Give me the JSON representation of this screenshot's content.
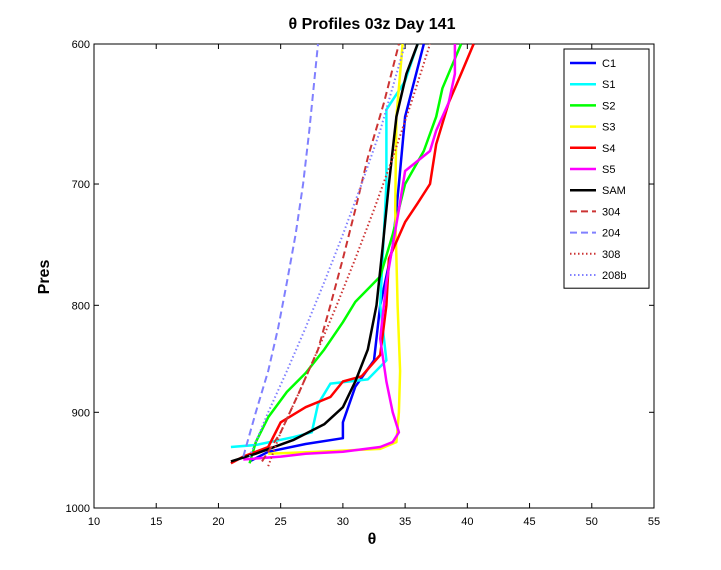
{
  "chart_data": {
    "type": "line",
    "title": "θ Profiles 03z Day 141",
    "xlabel": "θ",
    "ylabel": "Pres",
    "xlim": [
      10,
      55
    ],
    "ylim": [
      600,
      1000
    ],
    "y_reversed": true,
    "y_scale": "log",
    "xticks": [
      10,
      15,
      20,
      25,
      30,
      35,
      40,
      45,
      50,
      55
    ],
    "yticks": [
      600,
      700,
      800,
      900,
      1000
    ],
    "grid": false,
    "legend_position": "top-right",
    "series": [
      {
        "name": "C1",
        "color": "#0000ff",
        "style": "solid",
        "points": [
          [
            22.5,
            950
          ],
          [
            24,
            940
          ],
          [
            27,
            932
          ],
          [
            30,
            926
          ],
          [
            30,
            910
          ],
          [
            31,
            875
          ],
          [
            32.5,
            850
          ],
          [
            33,
            800
          ],
          [
            34,
            750
          ],
          [
            34.5,
            700
          ],
          [
            35,
            650
          ],
          [
            36.5,
            600
          ]
        ]
      },
      {
        "name": "S1",
        "color": "#00ffff",
        "style": "solid",
        "points": [
          [
            21,
            935
          ],
          [
            23,
            933
          ],
          [
            26,
            925
          ],
          [
            27.5,
            920
          ],
          [
            28,
            892
          ],
          [
            29,
            872
          ],
          [
            32,
            868
          ],
          [
            33.5,
            850
          ],
          [
            33,
            800
          ],
          [
            33.5,
            700
          ],
          [
            33.5,
            645
          ],
          [
            35,
            625
          ],
          [
            36,
            600
          ]
        ]
      },
      {
        "name": "S2",
        "color": "#00ff00",
        "style": "solid",
        "points": [
          [
            22.5,
            952
          ],
          [
            23,
            930
          ],
          [
            24,
            905
          ],
          [
            25.5,
            880
          ],
          [
            27,
            862
          ],
          [
            28.5,
            840
          ],
          [
            30,
            815
          ],
          [
            31,
            797
          ],
          [
            33,
            775
          ],
          [
            34,
            740
          ],
          [
            35,
            700
          ],
          [
            36.5,
            675
          ],
          [
            37.5,
            650
          ],
          [
            38,
            630
          ],
          [
            39.5,
            600
          ]
        ]
      },
      {
        "name": "S3",
        "color": "#ffff00",
        "style": "solid",
        "points": [
          [
            24,
            942
          ],
          [
            28,
            940
          ],
          [
            33,
            937
          ],
          [
            34.3,
            930
          ],
          [
            34.5,
            900
          ],
          [
            34.6,
            860
          ],
          [
            34.4,
            800
          ],
          [
            34.2,
            720
          ],
          [
            34.3,
            650
          ],
          [
            34.6,
            620
          ],
          [
            34.8,
            600
          ]
        ]
      },
      {
        "name": "S4",
        "color": "#ff0000",
        "style": "solid",
        "points": [
          [
            21,
            952
          ],
          [
            22,
            945
          ],
          [
            24,
            935
          ],
          [
            25,
            910
          ],
          [
            27,
            895
          ],
          [
            29,
            885
          ],
          [
            30,
            870
          ],
          [
            31.5,
            865
          ],
          [
            33,
            845
          ],
          [
            33.5,
            800
          ],
          [
            33.7,
            760
          ],
          [
            35,
            730
          ],
          [
            36,
            715
          ],
          [
            37,
            700
          ],
          [
            37.5,
            670
          ],
          [
            38.5,
            640
          ],
          [
            39.5,
            620
          ],
          [
            40.5,
            600
          ]
        ]
      },
      {
        "name": "S5",
        "color": "#ff00ff",
        "style": "solid",
        "points": [
          [
            22,
            948
          ],
          [
            25,
            945
          ],
          [
            27,
            942
          ],
          [
            30,
            940
          ],
          [
            33,
            935
          ],
          [
            34,
            930
          ],
          [
            34.5,
            920
          ],
          [
            34,
            900
          ],
          [
            33.5,
            870
          ],
          [
            33,
            830
          ],
          [
            33.5,
            780
          ],
          [
            34.5,
            720
          ],
          [
            35,
            690
          ],
          [
            37,
            675
          ],
          [
            37.5,
            660
          ],
          [
            38.5,
            640
          ],
          [
            39,
            620
          ],
          [
            39,
            600
          ]
        ]
      },
      {
        "name": "SAM",
        "color": "#000000",
        "style": "solid",
        "points": [
          [
            21,
            950
          ],
          [
            23,
            942
          ],
          [
            26,
            928
          ],
          [
            28.5,
            912
          ],
          [
            30,
            895
          ],
          [
            31,
            870
          ],
          [
            32,
            840
          ],
          [
            32.7,
            800
          ],
          [
            33.2,
            750
          ],
          [
            33.7,
            700
          ],
          [
            34.3,
            650
          ],
          [
            35.1,
            620
          ],
          [
            36,
            600
          ]
        ]
      },
      {
        "name": "304",
        "color": "#cc3333",
        "style": "dashed",
        "points": [
          [
            23.5,
            950
          ],
          [
            25,
            920
          ],
          [
            26.5,
            880
          ],
          [
            28,
            840
          ],
          [
            29,
            800
          ],
          [
            30,
            760
          ],
          [
            31,
            720
          ],
          [
            32,
            680
          ],
          [
            33.3,
            640
          ],
          [
            34.5,
            600
          ]
        ]
      },
      {
        "name": "204",
        "color": "#8080ff",
        "style": "dashed",
        "points": [
          [
            22,
            945
          ],
          [
            23,
            900
          ],
          [
            24,
            860
          ],
          [
            24.8,
            820
          ],
          [
            25.5,
            780
          ],
          [
            26.2,
            740
          ],
          [
            26.8,
            700
          ],
          [
            27.3,
            660
          ],
          [
            28,
            600
          ]
        ]
      },
      {
        "name": "308",
        "color": "#cc3333",
        "style": "dotted",
        "points": [
          [
            24,
            955
          ],
          [
            25,
            920
          ],
          [
            26.5,
            880
          ],
          [
            28,
            840
          ],
          [
            29.5,
            800
          ],
          [
            31,
            760
          ],
          [
            32.5,
            720
          ],
          [
            34,
            680
          ],
          [
            35.5,
            640
          ],
          [
            37,
            600
          ]
        ]
      },
      {
        "name": "208b",
        "color": "#8080ff",
        "style": "dotted",
        "points": [
          [
            22.5,
            945
          ],
          [
            24,
            900
          ],
          [
            25.5,
            860
          ],
          [
            27,
            820
          ],
          [
            28.5,
            780
          ],
          [
            30,
            740
          ],
          [
            31.5,
            700
          ],
          [
            33,
            660
          ],
          [
            35,
            600
          ]
        ]
      }
    ]
  }
}
